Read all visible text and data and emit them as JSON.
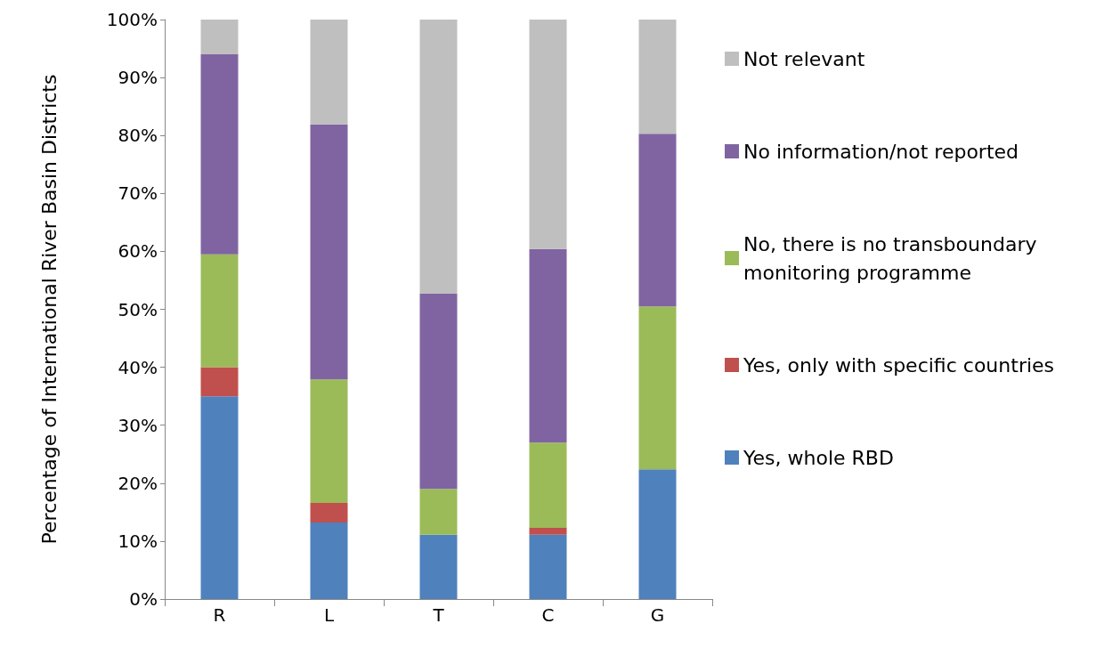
{
  "chart_data": {
    "type": "bar",
    "stacked": true,
    "ylabel": "Percentage of International River Basin Districts",
    "categories": [
      "R",
      "L",
      "T",
      "C",
      "G"
    ],
    "series": [
      {
        "name": "Yes, whole RBD",
        "color": "#4f81bd",
        "values": [
          35,
          13.2,
          11.1,
          11.1,
          22.4
        ]
      },
      {
        "name": "Yes, only with specific countries",
        "color": "#c0504d",
        "values": [
          5,
          3.4,
          0,
          1.2,
          0
        ]
      },
      {
        "name": "No, there is no transboundary monitoring programme",
        "color": "#9bbb59",
        "values": [
          19.5,
          21.3,
          7.9,
          14.7,
          28.1
        ]
      },
      {
        "name": "No information/not reported",
        "color": "#8064a2",
        "values": [
          34.5,
          44,
          33.7,
          33.4,
          29.8
        ]
      },
      {
        "name": "Not relevant",
        "color": "#bfbfbf",
        "values": [
          6,
          18.1,
          47.3,
          39.6,
          19.7
        ]
      }
    ],
    "ylim": [
      0,
      100
    ],
    "yticks": [
      {
        "value": 0,
        "label": "0%"
      },
      {
        "value": 10,
        "label": "10%"
      },
      {
        "value": 20,
        "label": "20%"
      },
      {
        "value": 30,
        "label": "30%"
      },
      {
        "value": 40,
        "label": "40%"
      },
      {
        "value": 50,
        "label": "50%"
      },
      {
        "value": 60,
        "label": "60%"
      },
      {
        "value": 70,
        "label": "70%"
      },
      {
        "value": 80,
        "label": "80%"
      },
      {
        "value": 90,
        "label": "90%"
      },
      {
        "value": 100,
        "label": "100%"
      }
    ],
    "grid": false,
    "legend": "right"
  }
}
